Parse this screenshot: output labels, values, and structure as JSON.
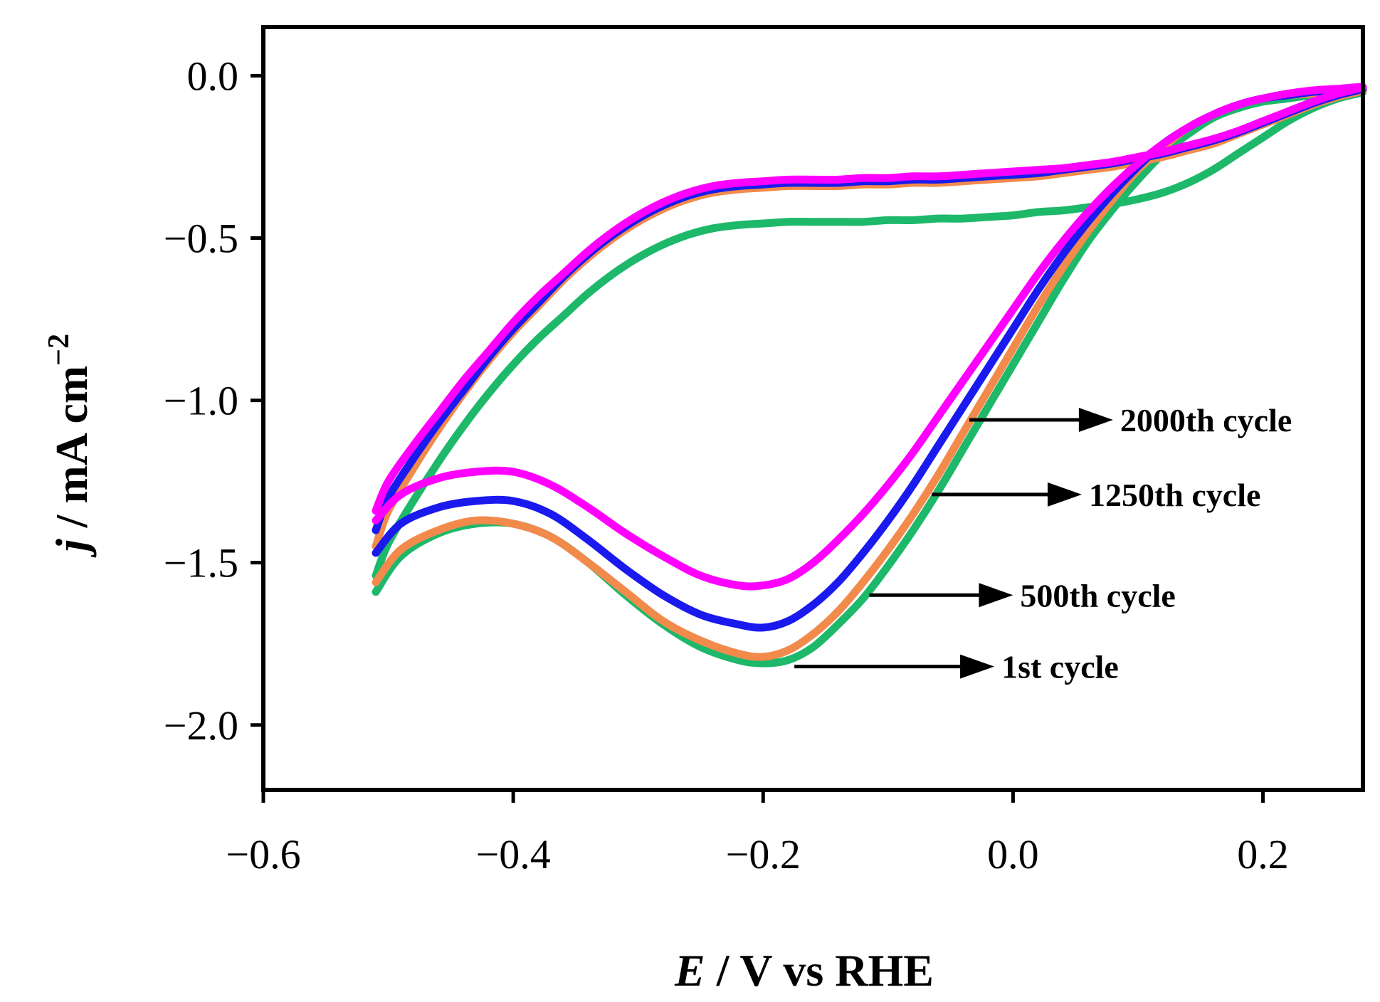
{
  "chart_data": {
    "type": "line",
    "title": "",
    "xlabel": {
      "var": "E",
      "rest": " / V vs RHE"
    },
    "ylabel": {
      "var": "j",
      "mid": " / mA cm",
      "sup": "−2"
    },
    "xlim": [
      -0.6,
      0.28
    ],
    "ylim": [
      -2.2,
      0.15
    ],
    "xticks": [
      -0.6,
      -0.4,
      -0.2,
      0.0,
      0.2
    ],
    "xtick_labels": [
      "−0.6",
      "−0.4",
      "−0.2",
      "0.0",
      "0.2"
    ],
    "yticks": [
      0.0,
      -0.5,
      -1.0,
      -1.5,
      -2.0
    ],
    "ytick_labels": [
      "0.0",
      "−0.5",
      "−1.0",
      "−1.5",
      "−2.0"
    ],
    "grid": false,
    "series": [
      {
        "name": "1st cycle",
        "color": "#1db86a",
        "x": [
          -0.51,
          -0.49,
          -0.46,
          -0.43,
          -0.4,
          -0.37,
          -0.34,
          -0.31,
          -0.28,
          -0.25,
          -0.22,
          -0.2,
          -0.18,
          -0.16,
          -0.14,
          -0.12,
          -0.1,
          -0.08,
          -0.06,
          -0.04,
          -0.02,
          0.0,
          0.02,
          0.04,
          0.06,
          0.08,
          0.1,
          0.12,
          0.14,
          0.16,
          0.18,
          0.2,
          0.22,
          0.24,
          0.26,
          0.28,
          0.26,
          0.24,
          0.22,
          0.2,
          0.18,
          0.16,
          0.14,
          0.12,
          0.1,
          0.08,
          0.06,
          0.04,
          0.02,
          0.0,
          -0.02,
          -0.04,
          -0.06,
          -0.08,
          -0.1,
          -0.12,
          -0.14,
          -0.16,
          -0.18,
          -0.2,
          -0.22,
          -0.24,
          -0.26,
          -0.28,
          -0.3,
          -0.32,
          -0.34,
          -0.36,
          -0.38,
          -0.4,
          -0.42,
          -0.44,
          -0.46,
          -0.48,
          -0.5,
          -0.51
        ],
        "y": [
          -1.59,
          -1.48,
          -1.41,
          -1.38,
          -1.38,
          -1.42,
          -1.5,
          -1.6,
          -1.69,
          -1.76,
          -1.8,
          -1.81,
          -1.8,
          -1.76,
          -1.69,
          -1.61,
          -1.51,
          -1.4,
          -1.28,
          -1.15,
          -1.02,
          -0.89,
          -0.76,
          -0.63,
          -0.51,
          -0.41,
          -0.32,
          -0.24,
          -0.18,
          -0.13,
          -0.1,
          -0.08,
          -0.07,
          -0.06,
          -0.055,
          -0.05,
          -0.07,
          -0.1,
          -0.14,
          -0.19,
          -0.24,
          -0.29,
          -0.33,
          -0.36,
          -0.38,
          -0.395,
          -0.405,
          -0.415,
          -0.42,
          -0.43,
          -0.435,
          -0.44,
          -0.44,
          -0.445,
          -0.445,
          -0.45,
          -0.45,
          -0.45,
          -0.45,
          -0.455,
          -0.46,
          -0.47,
          -0.49,
          -0.52,
          -0.56,
          -0.61,
          -0.67,
          -0.74,
          -0.81,
          -0.89,
          -0.98,
          -1.08,
          -1.19,
          -1.31,
          -1.44,
          -1.54
        ]
      },
      {
        "name": "500th cycle",
        "color": "#f28a4b",
        "x": [
          -0.51,
          -0.49,
          -0.46,
          -0.43,
          -0.4,
          -0.37,
          -0.34,
          -0.31,
          -0.28,
          -0.25,
          -0.22,
          -0.2,
          -0.18,
          -0.16,
          -0.14,
          -0.12,
          -0.1,
          -0.08,
          -0.06,
          -0.04,
          -0.02,
          0.0,
          0.02,
          0.04,
          0.06,
          0.08,
          0.1,
          0.12,
          0.14,
          0.16,
          0.18,
          0.2,
          0.22,
          0.24,
          0.26,
          0.28,
          0.26,
          0.24,
          0.22,
          0.2,
          0.18,
          0.16,
          0.14,
          0.12,
          0.1,
          0.08,
          0.06,
          0.04,
          0.02,
          0.0,
          -0.02,
          -0.04,
          -0.06,
          -0.08,
          -0.1,
          -0.12,
          -0.14,
          -0.16,
          -0.18,
          -0.2,
          -0.22,
          -0.24,
          -0.26,
          -0.28,
          -0.3,
          -0.32,
          -0.34,
          -0.36,
          -0.38,
          -0.4,
          -0.42,
          -0.44,
          -0.46,
          -0.48,
          -0.5,
          -0.51
        ],
        "y": [
          -1.56,
          -1.46,
          -1.4,
          -1.37,
          -1.38,
          -1.42,
          -1.5,
          -1.59,
          -1.68,
          -1.74,
          -1.78,
          -1.79,
          -1.77,
          -1.72,
          -1.65,
          -1.56,
          -1.46,
          -1.35,
          -1.23,
          -1.1,
          -0.97,
          -0.84,
          -0.71,
          -0.59,
          -0.48,
          -0.38,
          -0.29,
          -0.22,
          -0.16,
          -0.12,
          -0.09,
          -0.07,
          -0.06,
          -0.055,
          -0.05,
          -0.045,
          -0.065,
          -0.09,
          -0.12,
          -0.15,
          -0.18,
          -0.21,
          -0.23,
          -0.25,
          -0.265,
          -0.28,
          -0.29,
          -0.3,
          -0.31,
          -0.315,
          -0.32,
          -0.325,
          -0.33,
          -0.33,
          -0.335,
          -0.335,
          -0.34,
          -0.34,
          -0.34,
          -0.345,
          -0.35,
          -0.36,
          -0.38,
          -0.41,
          -0.45,
          -0.5,
          -0.56,
          -0.63,
          -0.71,
          -0.79,
          -0.88,
          -0.98,
          -1.09,
          -1.21,
          -1.34,
          -1.45
        ]
      },
      {
        "name": "1250th cycle",
        "color": "#1a1aee",
        "x": [
          -0.51,
          -0.49,
          -0.46,
          -0.43,
          -0.4,
          -0.37,
          -0.34,
          -0.31,
          -0.28,
          -0.25,
          -0.22,
          -0.2,
          -0.18,
          -0.16,
          -0.14,
          -0.12,
          -0.1,
          -0.08,
          -0.06,
          -0.04,
          -0.02,
          0.0,
          0.02,
          0.04,
          0.06,
          0.08,
          0.1,
          0.12,
          0.14,
          0.16,
          0.18,
          0.2,
          0.22,
          0.24,
          0.26,
          0.28,
          0.26,
          0.24,
          0.22,
          0.2,
          0.18,
          0.16,
          0.14,
          0.12,
          0.1,
          0.08,
          0.06,
          0.04,
          0.02,
          0.0,
          -0.02,
          -0.04,
          -0.06,
          -0.08,
          -0.1,
          -0.12,
          -0.14,
          -0.16,
          -0.18,
          -0.2,
          -0.22,
          -0.24,
          -0.26,
          -0.28,
          -0.3,
          -0.32,
          -0.34,
          -0.36,
          -0.38,
          -0.4,
          -0.42,
          -0.44,
          -0.46,
          -0.48,
          -0.5,
          -0.51
        ],
        "y": [
          -1.47,
          -1.38,
          -1.33,
          -1.31,
          -1.31,
          -1.35,
          -1.43,
          -1.52,
          -1.6,
          -1.66,
          -1.69,
          -1.7,
          -1.68,
          -1.63,
          -1.56,
          -1.47,
          -1.37,
          -1.26,
          -1.14,
          -1.02,
          -0.9,
          -0.78,
          -0.66,
          -0.55,
          -0.45,
          -0.36,
          -0.28,
          -0.21,
          -0.16,
          -0.12,
          -0.09,
          -0.07,
          -0.06,
          -0.05,
          -0.045,
          -0.04,
          -0.06,
          -0.085,
          -0.115,
          -0.145,
          -0.175,
          -0.2,
          -0.22,
          -0.24,
          -0.255,
          -0.27,
          -0.28,
          -0.29,
          -0.3,
          -0.305,
          -0.31,
          -0.315,
          -0.32,
          -0.32,
          -0.325,
          -0.325,
          -0.33,
          -0.33,
          -0.33,
          -0.335,
          -0.34,
          -0.35,
          -0.37,
          -0.4,
          -0.44,
          -0.49,
          -0.55,
          -0.62,
          -0.7,
          -0.78,
          -0.87,
          -0.97,
          -1.07,
          -1.18,
          -1.3,
          -1.4
        ]
      },
      {
        "name": "2000th cycle",
        "color": "#ff00ff",
        "x": [
          -0.51,
          -0.49,
          -0.46,
          -0.43,
          -0.4,
          -0.37,
          -0.34,
          -0.31,
          -0.28,
          -0.25,
          -0.22,
          -0.2,
          -0.18,
          -0.16,
          -0.14,
          -0.12,
          -0.1,
          -0.08,
          -0.06,
          -0.04,
          -0.02,
          0.0,
          0.02,
          0.04,
          0.06,
          0.08,
          0.1,
          0.12,
          0.14,
          0.16,
          0.18,
          0.2,
          0.22,
          0.24,
          0.26,
          0.28,
          0.26,
          0.24,
          0.22,
          0.2,
          0.18,
          0.16,
          0.14,
          0.12,
          0.1,
          0.08,
          0.06,
          0.04,
          0.02,
          0.0,
          -0.02,
          -0.04,
          -0.06,
          -0.08,
          -0.1,
          -0.12,
          -0.14,
          -0.16,
          -0.18,
          -0.2,
          -0.22,
          -0.24,
          -0.26,
          -0.28,
          -0.3,
          -0.32,
          -0.34,
          -0.36,
          -0.38,
          -0.4,
          -0.42,
          -0.44,
          -0.46,
          -0.48,
          -0.5,
          -0.51
        ],
        "y": [
          -1.37,
          -1.29,
          -1.24,
          -1.22,
          -1.22,
          -1.26,
          -1.33,
          -1.41,
          -1.48,
          -1.54,
          -1.57,
          -1.57,
          -1.55,
          -1.5,
          -1.43,
          -1.35,
          -1.26,
          -1.16,
          -1.05,
          -0.94,
          -0.83,
          -0.72,
          -0.61,
          -0.51,
          -0.42,
          -0.34,
          -0.27,
          -0.21,
          -0.16,
          -0.12,
          -0.09,
          -0.07,
          -0.055,
          -0.045,
          -0.04,
          -0.035,
          -0.055,
          -0.08,
          -0.11,
          -0.14,
          -0.17,
          -0.195,
          -0.215,
          -0.235,
          -0.25,
          -0.265,
          -0.275,
          -0.285,
          -0.29,
          -0.295,
          -0.3,
          -0.305,
          -0.31,
          -0.31,
          -0.315,
          -0.315,
          -0.32,
          -0.32,
          -0.32,
          -0.325,
          -0.33,
          -0.34,
          -0.36,
          -0.39,
          -0.43,
          -0.48,
          -0.54,
          -0.61,
          -0.68,
          -0.76,
          -0.85,
          -0.94,
          -1.04,
          -1.14,
          -1.25,
          -1.34
        ]
      }
    ],
    "annotations": [
      {
        "label": "2000th cycle",
        "arrow_from": [
          -0.035,
          -1.06
        ],
        "arrow_to": [
          0.08,
          -1.06
        ]
      },
      {
        "label": "1250th cycle",
        "arrow_from": [
          -0.065,
          -1.29
        ],
        "arrow_to": [
          0.055,
          -1.29
        ]
      },
      {
        "label": "500th cycle",
        "arrow_from": [
          -0.115,
          -1.6
        ],
        "arrow_to": [
          0.0,
          -1.6
        ]
      },
      {
        "label": "1st cycle",
        "arrow_from": [
          -0.175,
          -1.82
        ],
        "arrow_to": [
          -0.015,
          -1.82
        ]
      }
    ]
  }
}
